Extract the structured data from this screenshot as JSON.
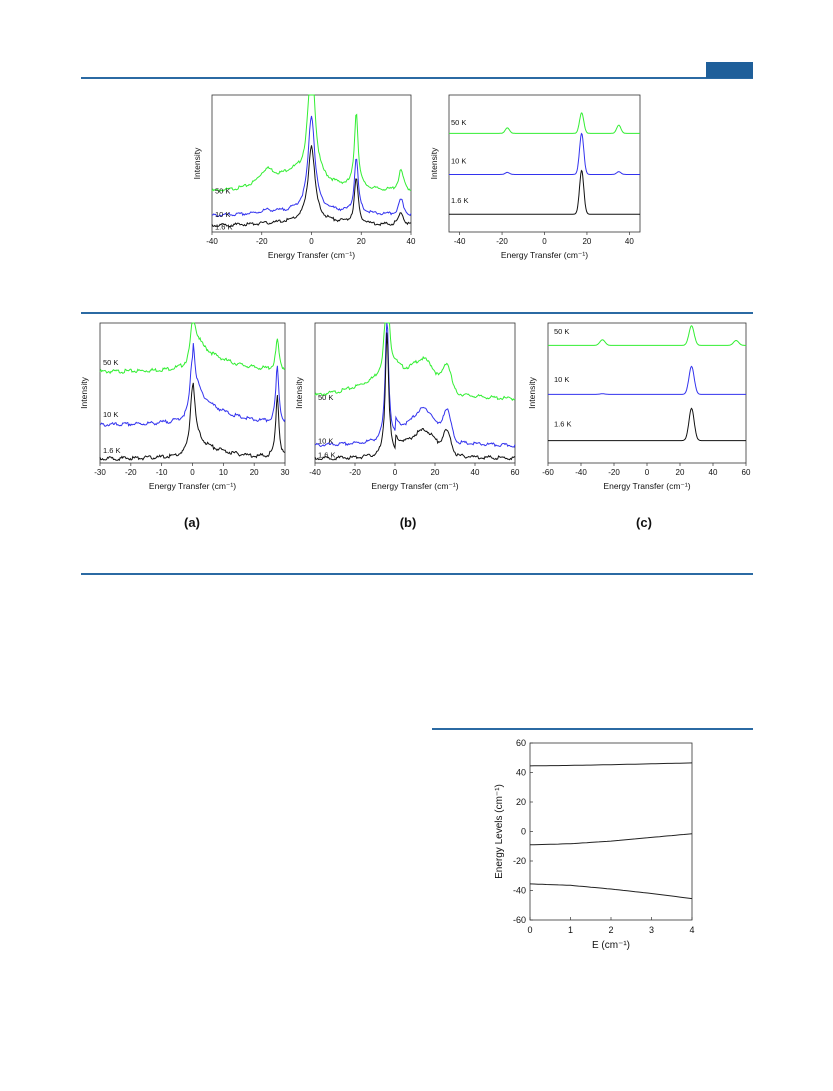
{
  "colors": {
    "rule": "#2b6aa3",
    "tab": "#1f5f9a",
    "green": "#33ee33",
    "blue": "#3333ee",
    "black": "#111111"
  },
  "subfig_labels": [
    "(a)",
    "(b)",
    "(c)"
  ],
  "chart_data": [
    {
      "id": "top-left",
      "type": "line",
      "xlabel": "Energy Transfer (cm⁻¹)",
      "ylabel": "Intensity",
      "xlim": [
        -40,
        40
      ],
      "xticks": [
        -40,
        -20,
        0,
        20,
        40
      ],
      "series": [
        {
          "name": "50 K"
        },
        {
          "name": "10 K"
        },
        {
          "name": "1.6 K"
        }
      ]
    },
    {
      "id": "top-right",
      "type": "line",
      "xlabel": "Energy Transfer (cm⁻¹)",
      "ylabel": "Intensity",
      "xlim": [
        -45,
        45
      ],
      "xticks": [
        -40,
        -20,
        0,
        20,
        40
      ],
      "series": [
        {
          "name": "50 K"
        },
        {
          "name": "10 K"
        },
        {
          "name": "1.6 K"
        }
      ]
    },
    {
      "id": "a",
      "type": "line",
      "xlabel": "Energy Transfer (cm⁻¹)",
      "ylabel": "Intensity",
      "xlim": [
        -30,
        30
      ],
      "xticks": [
        -30,
        -20,
        -10,
        0,
        10,
        20,
        30
      ],
      "series": [
        {
          "name": "50 K"
        },
        {
          "name": "10 K"
        },
        {
          "name": "1.6 K"
        }
      ]
    },
    {
      "id": "b",
      "type": "line",
      "xlabel": "Energy Transfer (cm⁻¹)",
      "ylabel": "Intensity",
      "xlim": [
        -40,
        60
      ],
      "xticks": [
        -40,
        -20,
        0,
        20,
        40,
        60
      ],
      "series": [
        {
          "name": "50 K"
        },
        {
          "name": "10 K"
        },
        {
          "name": "1.6 K"
        }
      ]
    },
    {
      "id": "c",
      "type": "line",
      "xlabel": "Energy Transfer (cm⁻¹)",
      "ylabel": "Intensity",
      "xlim": [
        -60,
        60
      ],
      "xticks": [
        -60,
        -40,
        -20,
        0,
        20,
        40,
        60
      ],
      "series": [
        {
          "name": "50 K"
        },
        {
          "name": "10 K"
        },
        {
          "name": "1.6 K"
        }
      ]
    },
    {
      "id": "levels",
      "type": "line",
      "xlabel": "E (cm⁻¹)",
      "ylabel": "Energy Levels (cm⁻¹)",
      "xlim": [
        0,
        4
      ],
      "ylim": [
        -60,
        60
      ],
      "xticks": [
        0,
        1,
        2,
        3,
        4
      ],
      "yticks": [
        -60,
        -40,
        -20,
        0,
        20,
        40,
        60
      ],
      "series": [
        {
          "x": [
            0,
            1,
            2,
            3,
            4
          ],
          "y": [
            44.5,
            44.8,
            45.3,
            45.9,
            46.5
          ]
        },
        {
          "x": [
            0,
            1,
            2,
            3,
            4
          ],
          "y": [
            -9,
            -8.3,
            -6.5,
            -4.0,
            -1.5
          ]
        },
        {
          "x": [
            0,
            1,
            2,
            3,
            4
          ],
          "y": [
            -35.5,
            -36.5,
            -39.0,
            -42.0,
            -45.5
          ]
        }
      ]
    }
  ]
}
